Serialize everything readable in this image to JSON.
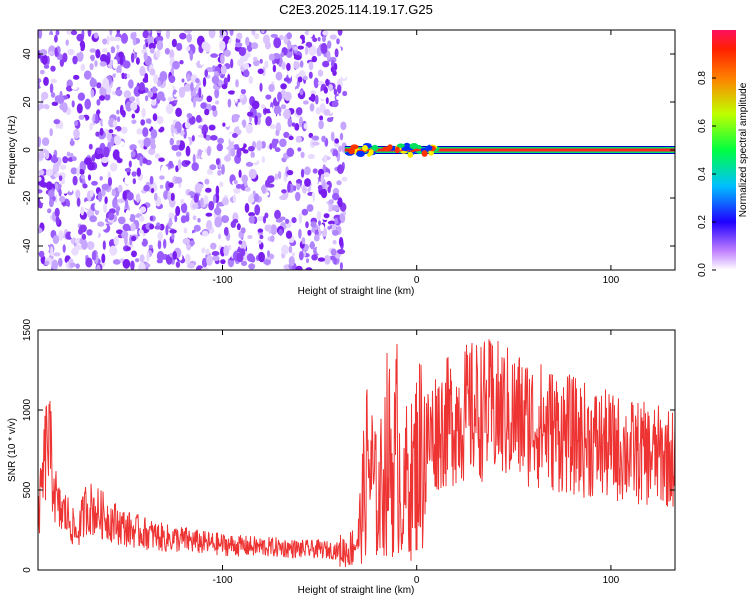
{
  "title": "C2E3.2025.114.19.17.G25",
  "colors": {
    "snr_line": "#ee3333",
    "purple": "#7a00e6"
  },
  "chart_data": [
    {
      "type": "heatmap",
      "xlabel": "Height of straight line (km)",
      "ylabel": "Frequency (Hz)",
      "xlim": [
        -195,
        133
      ],
      "ylim": [
        -50,
        50
      ],
      "x_ticks": [
        "-100",
        "0",
        "100"
      ],
      "y_ticks": [
        "-40",
        "-20",
        "0",
        "20",
        "40"
      ],
      "noise_region_x": [
        -195,
        -37
      ],
      "signal_band_hz": 0,
      "colorbar": {
        "label": "Normalized spectral amplitude",
        "ticks": [
          "0.0",
          "0.2",
          "0.4",
          "0.6",
          "0.8"
        ],
        "range": [
          0,
          1
        ],
        "colormap": [
          "#ffffff",
          "#a000ff",
          "#0000ff",
          "#00ffff",
          "#00ff00",
          "#ffff00",
          "#ff8000",
          "#ff0000"
        ]
      }
    },
    {
      "type": "line",
      "xlabel": "Height of straight line (km)",
      "ylabel": "SNR (10 * v/v)",
      "xlim": [
        -195,
        133
      ],
      "ylim": [
        0,
        1500
      ],
      "x_ticks": [
        "-100",
        "0",
        "100"
      ],
      "y_ticks": [
        "0",
        "500",
        "1000",
        "1500"
      ],
      "series": [
        {
          "x": [
            -195,
            -190,
            -185,
            -180,
            -175,
            -170,
            -160,
            -150,
            -140,
            -130,
            -120,
            -110,
            -100,
            -90,
            -80,
            -70,
            -60,
            -50,
            -40,
            -35,
            -30,
            -27,
            -25,
            -20,
            -15,
            -12,
            -10,
            -7,
            -5,
            -2,
            0,
            5,
            10,
            20,
            30,
            40,
            50,
            60,
            70,
            80,
            90,
            100,
            110,
            120,
            133
          ],
          "y": [
            300,
            850,
            380,
            340,
            220,
            400,
            330,
            260,
            230,
            200,
            190,
            170,
            160,
            150,
            145,
            140,
            130,
            130,
            120,
            120,
            200,
            500,
            700,
            400,
            750,
            600,
            800,
            350,
            600,
            550,
            700,
            800,
            880,
            950,
            1000,
            1000,
            960,
            920,
            880,
            840,
            800,
            770,
            740,
            720,
            700
          ]
        }
      ]
    }
  ]
}
